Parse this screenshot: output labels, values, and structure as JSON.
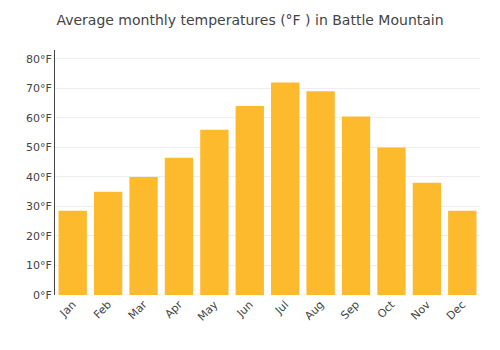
{
  "chart_data": {
    "type": "bar",
    "title": "Average monthly temperatures (°F ) in Battle Mountain",
    "categories": [
      "Jan",
      "Feb",
      "Mar",
      "Apr",
      "May",
      "Jun",
      "Jul",
      "Aug",
      "Sep",
      "Oct",
      "Nov",
      "Dec"
    ],
    "values": [
      28.5,
      35,
      40,
      46.5,
      56,
      64,
      72,
      69,
      60.5,
      50,
      38,
      28.5
    ],
    "color": "#FDBA2C",
    "ylim": [
      0,
      83
    ],
    "yticks": [
      {
        "value": 0,
        "label": "0°F"
      },
      {
        "value": 10,
        "label": "10°F"
      },
      {
        "value": 20,
        "label": "20°F"
      },
      {
        "value": 30,
        "label": "30°F"
      },
      {
        "value": 40,
        "label": "40°F"
      },
      {
        "value": 50,
        "label": "50°F"
      },
      {
        "value": 60,
        "label": "60°F"
      },
      {
        "value": 70,
        "label": "70°F"
      },
      {
        "value": 80,
        "label": "80°F"
      }
    ],
    "grid": true
  }
}
